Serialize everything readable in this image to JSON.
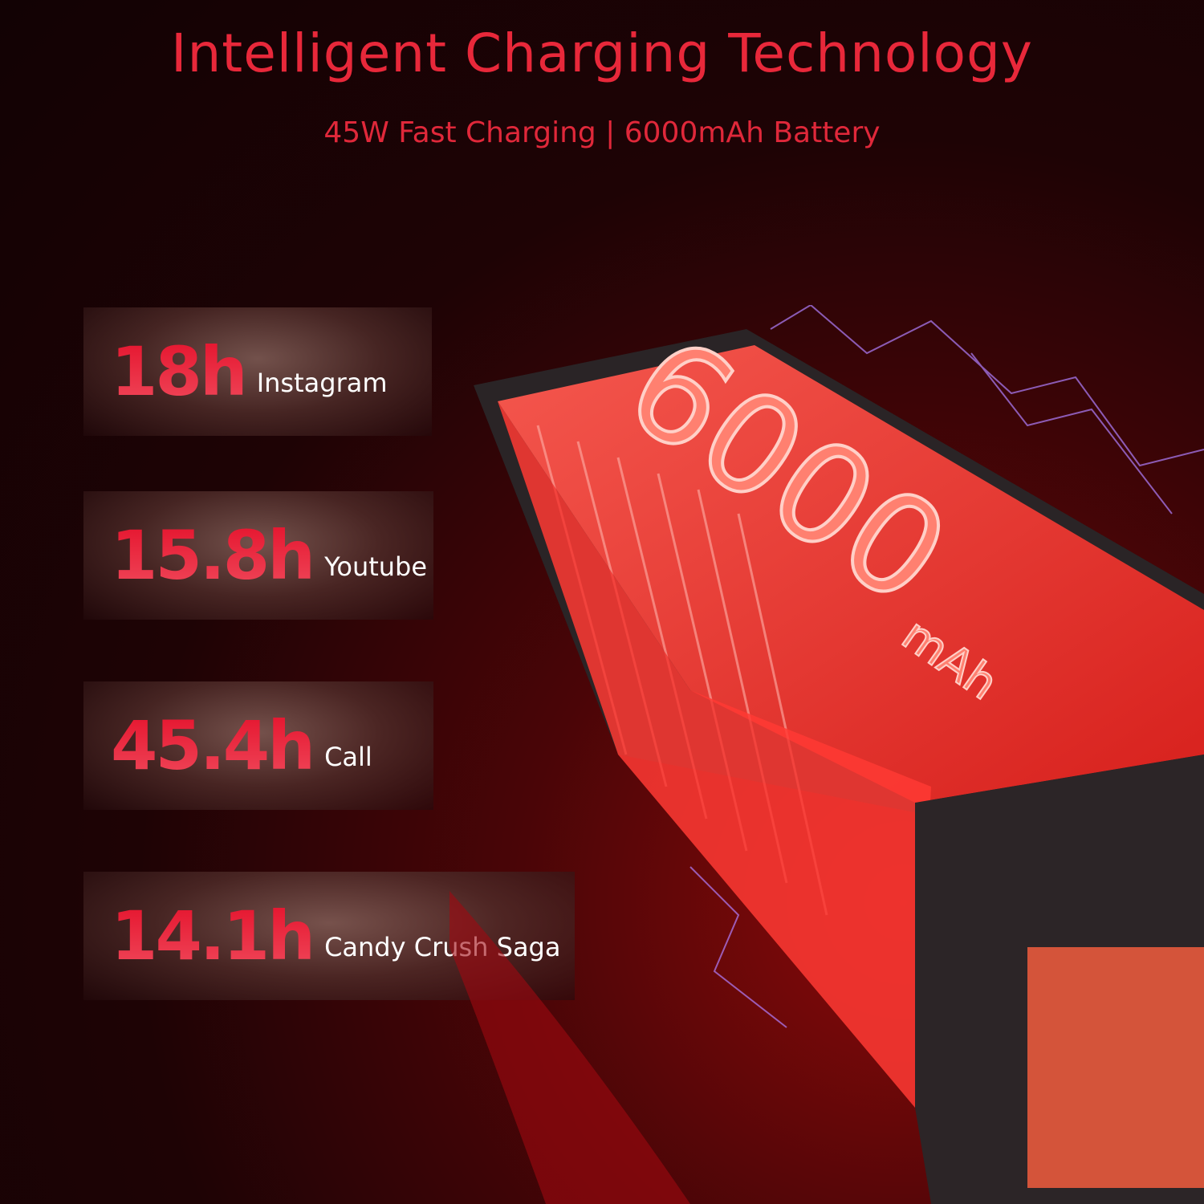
{
  "header": {
    "title": "Intelligent Charging Technology",
    "subtitle": "45W Fast Charging  | 6000mAh Battery"
  },
  "stats": [
    {
      "value": "18h",
      "label": "Instagram"
    },
    {
      "value": "15.8h",
      "label": "Youtube"
    },
    {
      "value": "45.4h",
      "label": "Call"
    },
    {
      "value": "14.1h",
      "label": "Candy Crush Saga"
    }
  ],
  "battery": {
    "capacity": "6000",
    "unit": "mAh"
  },
  "colors": {
    "accent": "#e8283a",
    "background": "#1e0305",
    "cell": "#ff4040"
  }
}
